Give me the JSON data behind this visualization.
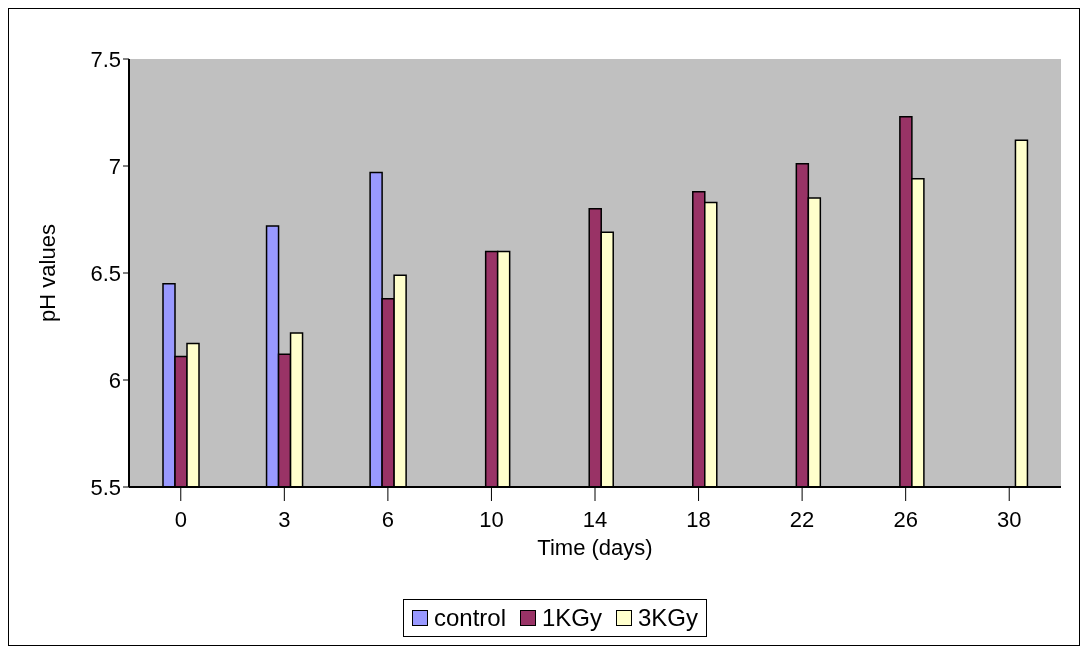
{
  "chart_data": {
    "type": "bar",
    "xlabel": "Time (days)",
    "ylabel": "pH values",
    "categories": [
      "0",
      "3",
      "6",
      "10",
      "14",
      "18",
      "22",
      "26",
      "30"
    ],
    "series": [
      {
        "name": "control",
        "color": "#9999ff",
        "values": [
          6.45,
          6.72,
          6.97,
          null,
          null,
          null,
          null,
          null,
          null
        ]
      },
      {
        "name": "1KGy",
        "color": "#993366",
        "values": [
          6.11,
          6.12,
          6.38,
          6.6,
          6.8,
          6.88,
          7.01,
          7.23,
          null
        ]
      },
      {
        "name": "3KGy",
        "color": "#ffffcc",
        "values": [
          6.17,
          6.22,
          6.49,
          6.6,
          6.69,
          6.83,
          6.85,
          6.94,
          7.12
        ]
      }
    ],
    "ylim": [
      5.5,
      7.5
    ],
    "yticks": [
      5.5,
      6,
      6.5,
      7,
      7.5
    ],
    "grid": false,
    "legend": "bottom"
  }
}
